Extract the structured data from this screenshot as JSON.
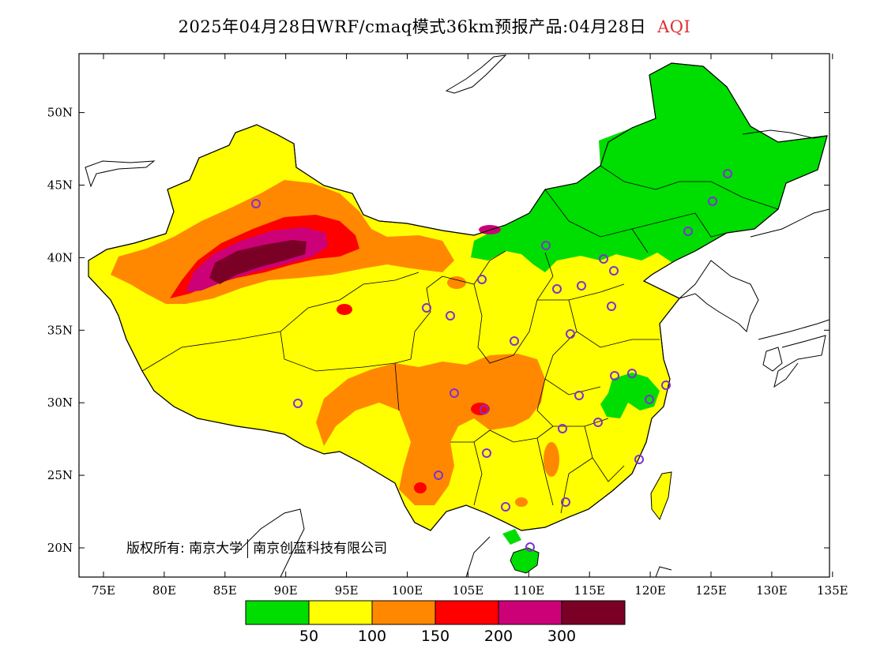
{
  "title": {
    "text": "2025年04月28日WRF/cmaq模式36km预报产品:04月28日",
    "variable": "AQI",
    "variable_color": "#e03030"
  },
  "axes": {
    "lon_labels": [
      "75E",
      "80E",
      "85E",
      "90E",
      "95E",
      "100E",
      "105E",
      "110E",
      "115E",
      "120E",
      "125E",
      "130E",
      "135E"
    ],
    "lat_labels": [
      "20N",
      "25N",
      "30N",
      "35N",
      "40N",
      "45N",
      "50N"
    ]
  },
  "legend": {
    "colors": [
      "#00dd00",
      "#ffff00",
      "#ff8800",
      "#ff0000",
      "#cc0077",
      "#7a0025"
    ],
    "labels": [
      "50",
      "100",
      "150",
      "200",
      "300"
    ]
  },
  "copyright": {
    "owner_1": "版权所有: 南京大学",
    "owner_2": "南京创蓝科技有限公司"
  },
  "map": {
    "land_color": "#ffff00",
    "background_color": "#ffffff",
    "city_marker_color": "#8030d0"
  }
}
